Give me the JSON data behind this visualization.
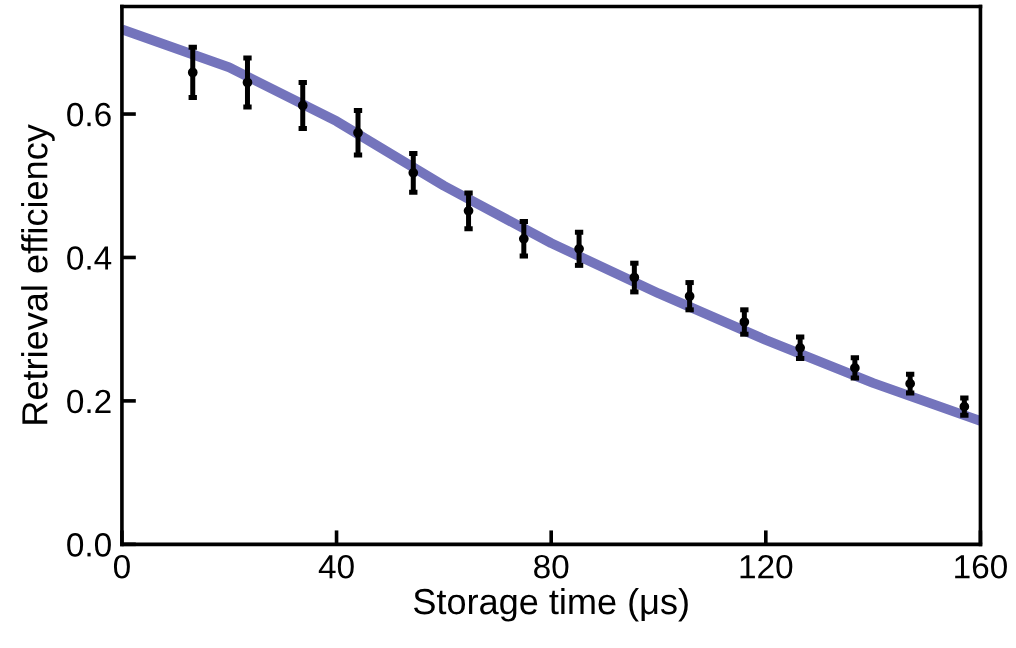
{
  "chart_data": {
    "type": "scatter",
    "xlabel": "Storage time (μs)",
    "ylabel": "Retrieval efficiency",
    "xlim": [
      0,
      160
    ],
    "ylim": [
      0,
      0.75
    ],
    "xticks": [
      0,
      40,
      80,
      120,
      160
    ],
    "yticks": [
      {
        "value": 0,
        "label": "0.0"
      },
      0.2,
      0.4,
      0.6
    ],
    "grid": false,
    "legend": false,
    "series": [
      {
        "type": "line",
        "color": "#7474bc",
        "x": [
          0,
          20,
          40,
          60,
          80,
          100,
          120,
          140,
          160
        ],
        "values": [
          0.718,
          0.665,
          0.59,
          0.5,
          0.42,
          0.35,
          0.285,
          0.225,
          0.172
        ]
      },
      {
        "marker": "circle",
        "color": "#000000",
        "x": [
          13.2,
          23.4,
          33.7,
          44,
          54.3,
          64.6,
          74.9,
          85.2,
          95.5,
          105.8,
          116,
          126.4,
          136.6,
          146.9,
          157
        ],
        "values": [
          0.658,
          0.644,
          0.612,
          0.574,
          0.518,
          0.465,
          0.426,
          0.412,
          0.372,
          0.346,
          0.31,
          0.274,
          0.246,
          0.224,
          0.192
        ],
        "errors": [
          0.035,
          0.034,
          0.032,
          0.031,
          0.027,
          0.025,
          0.024,
          0.023,
          0.02,
          0.019,
          0.017,
          0.015,
          0.014,
          0.013,
          0.012
        ]
      }
    ]
  }
}
